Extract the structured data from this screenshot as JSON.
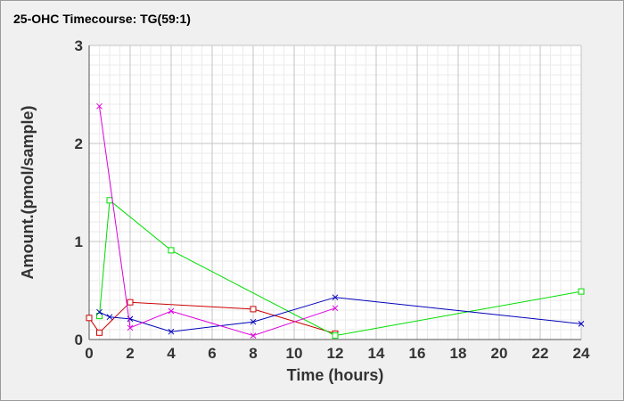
{
  "chart_data": {
    "type": "line",
    "title": "25-OHC Timecourse: TG(59:1)",
    "xlabel": "Time (hours)",
    "ylabel": "Amount.(pmol/sample)",
    "xlim": [
      0,
      24
    ],
    "ylim": [
      0,
      3
    ],
    "xticks": [
      0,
      2,
      4,
      6,
      8,
      10,
      12,
      14,
      16,
      18,
      20,
      22,
      24
    ],
    "yticks": [
      0,
      1,
      2,
      3
    ],
    "grid": true,
    "legend": "none",
    "series": [
      {
        "color": "#cc0000",
        "marker": "square",
        "x": [
          0,
          0.5,
          2,
          8,
          12
        ],
        "y": [
          0.22,
          0.07,
          0.38,
          0.31,
          0.06
        ]
      },
      {
        "color": "#00dd00",
        "marker": "square",
        "x": [
          0.5,
          1,
          4,
          12,
          24
        ],
        "y": [
          0.24,
          1.42,
          0.91,
          0.04,
          0.49
        ]
      },
      {
        "color": "#0000bb",
        "marker": "x",
        "x": [
          0.5,
          1,
          2,
          4,
          8,
          12,
          24
        ],
        "y": [
          0.28,
          0.23,
          0.21,
          0.08,
          0.18,
          0.43,
          0.16
        ]
      },
      {
        "color": "#dd00dd",
        "marker": "x",
        "x": [
          0.5,
          2,
          4,
          8,
          12
        ],
        "y": [
          2.38,
          0.12,
          0.29,
          0.04,
          0.32
        ]
      }
    ]
  }
}
